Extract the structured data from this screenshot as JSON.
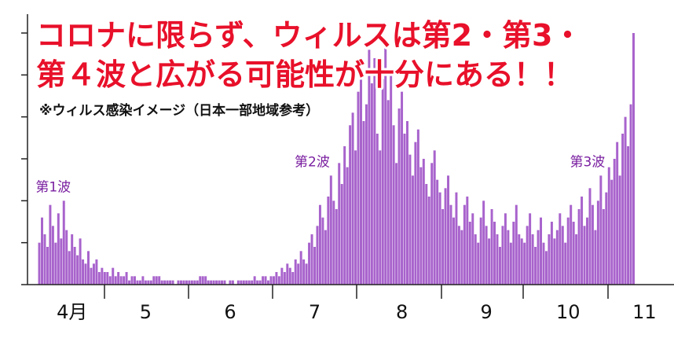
{
  "chart_data": {
    "type": "bar",
    "title": "コロナに限らず、ウィルスは第2・第3・",
    "subtitle": "第４波と広がる可能性が十分にある！！",
    "note": "※ウィルス感染イメージ（日本一部地域参考）",
    "annotations": [
      {
        "text": "第1波",
        "index": 5
      },
      {
        "text": "第2波",
        "index": 100
      },
      {
        "text": "第3波",
        "index": 201
      }
    ],
    "color": "#a863cc",
    "ylim": [
      0,
      6
    ],
    "yticks": [
      0,
      1,
      2,
      3,
      4,
      5,
      6
    ],
    "categories": [
      null,
      null,
      null,
      null,
      null,
      null,
      null,
      null,
      null,
      null,
      null,
      null,
      null,
      null,
      null,
      null,
      null,
      "4月",
      null,
      null,
      null,
      null,
      null,
      null,
      null,
      null,
      null,
      null,
      null,
      null,
      null,
      null,
      null,
      null,
      null,
      null,
      null,
      null,
      null,
      null,
      null,
      null,
      null,
      null,
      "5",
      null,
      null,
      null,
      null,
      null,
      null,
      null,
      null,
      null,
      null,
      null,
      null,
      null,
      null,
      null,
      null,
      null,
      null,
      null,
      null,
      null,
      null,
      null,
      null,
      null,
      null,
      null,
      null,
      null,
      null,
      "6",
      null,
      null,
      null,
      null,
      null,
      null,
      null,
      null,
      null,
      null,
      null,
      null,
      null,
      null,
      null,
      null,
      null,
      null,
      null,
      null,
      null,
      null,
      null,
      null,
      null,
      null,
      null,
      null,
      null,
      null,
      "7",
      null,
      null,
      null,
      null,
      null,
      null,
      null,
      null,
      null,
      null,
      null,
      null,
      null,
      null,
      null,
      null,
      null,
      null,
      null,
      null,
      null,
      null,
      null,
      null,
      null,
      null,
      null,
      null,
      null,
      null,
      null,
      "8",
      null,
      null,
      null,
      null,
      null,
      null,
      null,
      null,
      null,
      null,
      null,
      null,
      null,
      null,
      null,
      null,
      null,
      null,
      null,
      null,
      null,
      null,
      null,
      null,
      null,
      null,
      null,
      null,
      null,
      null,
      "9",
      null,
      null,
      null,
      null,
      null,
      null,
      null,
      null,
      null,
      null,
      null,
      null,
      null,
      null,
      null,
      null,
      null,
      null,
      null,
      null,
      null,
      null,
      null,
      null,
      null,
      null,
      null,
      null,
      null,
      "10",
      null,
      null,
      null,
      null,
      null,
      null,
      null,
      null,
      null,
      null,
      null,
      null,
      null,
      null,
      null,
      null,
      null,
      null,
      null,
      null,
      null,
      null,
      null,
      null,
      null,
      null,
      null,
      "11"
    ],
    "values": [
      null,
      null,
      null,
      null,
      null,
      1.0,
      1.6,
      1.2,
      0.9,
      1.9,
      1.4,
      1.0,
      1.7,
      1.1,
      2.0,
      1.3,
      0.8,
      1.2,
      0.9,
      0.7,
      1.1,
      0.6,
      0.5,
      0.8,
      0.4,
      0.5,
      0.6,
      0.3,
      0.4,
      0.3,
      0.3,
      0.2,
      0.4,
      0.2,
      0.3,
      0.2,
      0.2,
      0.3,
      0.1,
      0.2,
      0.2,
      0.1,
      0.1,
      0.2,
      0.1,
      0.1,
      0.1,
      0.2,
      0.2,
      0.2,
      0.1,
      0.1,
      0.1,
      0.1,
      0.1,
      0.0,
      0.1,
      0.1,
      0.1,
      0.1,
      0.1,
      0.1,
      0.1,
      0.1,
      0.2,
      0.2,
      0.2,
      0.1,
      0.1,
      0.1,
      0.1,
      0.1,
      0.1,
      0.1,
      0.0,
      0.1,
      0.1,
      0.0,
      0.1,
      0.1,
      0.1,
      0.1,
      0.1,
      0.1,
      0.2,
      0.1,
      0.1,
      0.2,
      0.2,
      0.1,
      0.2,
      0.2,
      0.3,
      0.2,
      0.4,
      0.3,
      0.5,
      0.4,
      0.3,
      0.6,
      0.5,
      0.8,
      0.6,
      0.5,
      1.0,
      1.2,
      0.9,
      1.4,
      1.9,
      1.6,
      1.3,
      2.1,
      2.6,
      2.0,
      1.8,
      2.9,
      2.4,
      3.3,
      2.8,
      3.8,
      4.1,
      3.2,
      4.6,
      5.2,
      3.9,
      4.3,
      5.6,
      4.8,
      5.4,
      3.6,
      3.2,
      4.9,
      5.8,
      4.4,
      5.1,
      3.8,
      2.9,
      4.2,
      4.6,
      3.6,
      3.9,
      3.1,
      2.6,
      3.4,
      3.7,
      2.8,
      3.0,
      2.4,
      2.1,
      2.9,
      3.2,
      2.5,
      2.2,
      1.8,
      2.3,
      2.6,
      1.9,
      1.6,
      2.2,
      1.4,
      1.3,
      1.9,
      2.1,
      1.5,
      1.7,
      1.2,
      1.0,
      1.6,
      2.0,
      1.4,
      1.1,
      1.8,
      1.5,
      1.2,
      0.9,
      1.4,
      1.7,
      1.3,
      1.0,
      1.5,
      1.9,
      1.2,
      1.1,
      1.0,
      1.4,
      1.7,
      1.2,
      0.9,
      1.3,
      1.6,
      1.0,
      0.8,
      1.2,
      1.5,
      1.1,
      1.3,
      1.7,
      1.4,
      1.0,
      1.6,
      1.9,
      1.5,
      1.2,
      1.8,
      2.1,
      1.4,
      1.6,
      2.3,
      1.9,
      1.3,
      2.0,
      2.6,
      1.8,
      2.2,
      2.8,
      2.5,
      3.0,
      3.4,
      2.6,
      3.6,
      4.0,
      3.3,
      4.3,
      6.0,
      null,
      null,
      null,
      null
    ]
  }
}
